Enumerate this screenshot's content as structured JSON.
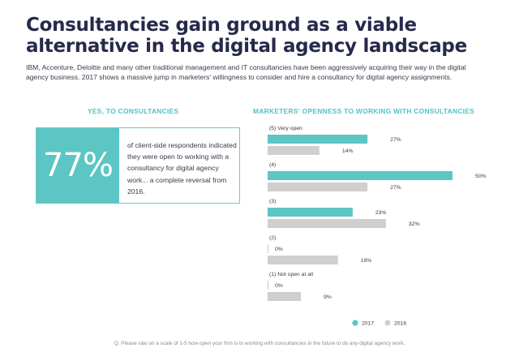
{
  "header": {
    "title_line1": "Consultancies gain ground as a viable",
    "title_line2": "alternative in the digital agency landscape",
    "intro": "IBM, Accenture, Deloitte and many other traditional management and IT consultancies have been aggressively acquiring their way in the digital agency business. 2017 shows a massive jump in marketers' willingness to consider and hire a consultancy for digital agency assignments."
  },
  "left_panel": {
    "heading": "YES, TO CONSULTANCIES",
    "stat": "77%",
    "description": "of client-side respondents indicated they were open to working with a consultancy for digital agency work... a complete reversal from 2016."
  },
  "right_panel": {
    "heading": "MARKETERS' OPENNESS TO WORKING WITH CONSULTANCIES"
  },
  "footnote": "Q: Please rate on a scale of 1-5 how open your firm is to working with consultancies in the future to do any digital agency work.",
  "chart_data": {
    "type": "bar",
    "orientation": "horizontal",
    "categories": [
      "(5) Very open",
      "(4)",
      "(3)",
      "(2)",
      "(1) Not open at all"
    ],
    "series": [
      {
        "name": "2017",
        "color": "#5cc6c4",
        "values": [
          27,
          50,
          23,
          0,
          0
        ]
      },
      {
        "name": "2016",
        "color": "#cfcfcf",
        "values": [
          14,
          27,
          32,
          19,
          9
        ]
      }
    ],
    "value_suffix": "%",
    "legend_position": "bottom-right",
    "grid": false
  }
}
